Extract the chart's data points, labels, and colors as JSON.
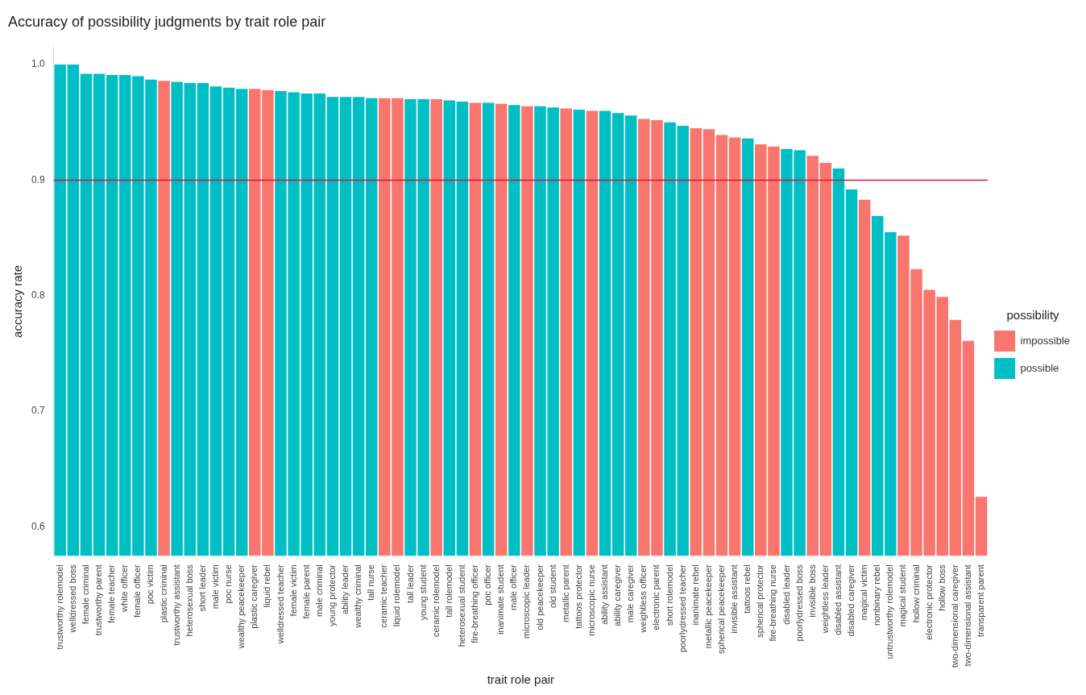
{
  "chart_data": {
    "type": "bar",
    "title": "Accuracy of possibility judgments by trait role pair",
    "xlabel": "trait role pair",
    "ylabel": "accuracy rate",
    "legend_title": "possibility",
    "legend": "right",
    "grid": false,
    "categories": [
      "trustworthy rolemodel",
      "welldressed boss",
      "female criminal",
      "trustworthy parent",
      "female teacher",
      "white officer",
      "female officer",
      "poc victim",
      "plastic criminal",
      "trustworthy assistant",
      "heterosexual boss",
      "short leader",
      "male victim",
      "poc nurse",
      "wealthy peacekeeper",
      "plastic caregiver",
      "liquid rebel",
      "welldressed teacher",
      "female victim",
      "female parent",
      "male criminal",
      "young protector",
      "ability leader",
      "wealthy criminal",
      "tall nurse",
      "ceramic teacher",
      "liquid rolemodel",
      "tall leader",
      "young student",
      "ceramic rolemodel",
      "tall rolemodel",
      "heterosexual student",
      "fire-breathing officer",
      "poc officer",
      "inanimate student",
      "male officer",
      "microscopic leader",
      "old peacekeeper",
      "old student",
      "metallic parent",
      "tattoos protector",
      "microscopic nurse",
      "ability assistant",
      "ability caregiver",
      "male caregiver",
      "weightless officer",
      "electronic parent",
      "short rolemodel",
      "poorlydressed teacher",
      "inanimate rebel",
      "metallic peacekeeper",
      "spherical peacekeeper",
      "invisible assistant",
      "tattoos rebel",
      "spherical protector",
      "fire-breathing nurse",
      "disabled leader",
      "poorlydressed boss",
      "invisible boss",
      "weightless leader",
      "disabled assistant",
      "disabled caregiver",
      "magical victim",
      "nonbinary rebel",
      "untrustworthy rolemodel",
      "magical student",
      "hollow criminal",
      "electronic protector",
      "hollow boss",
      "two-dimensional caregiver",
      "two-dimensional assistant",
      "transparent parent"
    ],
    "series": [
      {
        "name": "impossible",
        "color": "#f8766d",
        "values": [
          null,
          null,
          null,
          null,
          null,
          null,
          null,
          null,
          0.986,
          null,
          null,
          null,
          null,
          null,
          null,
          0.979,
          0.978,
          null,
          null,
          null,
          null,
          null,
          null,
          null,
          null,
          0.971,
          0.971,
          null,
          null,
          0.97,
          null,
          null,
          0.967,
          null,
          0.966,
          null,
          0.964,
          null,
          null,
          0.962,
          null,
          0.96,
          null,
          null,
          null,
          0.953,
          0.952,
          null,
          null,
          0.945,
          0.944,
          0.939,
          0.937,
          null,
          0.931,
          0.929,
          null,
          null,
          0.921,
          0.915,
          null,
          null,
          0.883,
          null,
          null,
          0.852,
          0.823,
          0.805,
          0.799,
          0.779,
          0.761,
          0.626
        ]
      },
      {
        "name": "possible",
        "color": "#00bfc4",
        "values": [
          1.0,
          1.0,
          0.992,
          0.992,
          0.991,
          0.991,
          0.99,
          0.987,
          null,
          0.985,
          0.984,
          0.984,
          0.981,
          0.98,
          0.979,
          null,
          null,
          0.977,
          0.976,
          0.975,
          0.975,
          0.972,
          0.972,
          0.972,
          0.971,
          null,
          null,
          0.97,
          0.97,
          null,
          0.969,
          0.968,
          null,
          0.967,
          null,
          0.965,
          null,
          0.964,
          0.963,
          null,
          0.961,
          null,
          0.96,
          0.958,
          0.956,
          null,
          null,
          0.95,
          0.947,
          null,
          null,
          null,
          null,
          0.936,
          null,
          null,
          0.927,
          0.926,
          null,
          null,
          0.91,
          0.892,
          null,
          0.869,
          0.855,
          null,
          null,
          null,
          null,
          null,
          null,
          null
        ]
      }
    ],
    "ylim": [
      0.575,
      1.015
    ],
    "yticks": [
      {
        "value": 0.6,
        "label": "0.6"
      },
      {
        "value": 0.7,
        "label": "0.7"
      },
      {
        "value": 0.8,
        "label": "0.8"
      },
      {
        "value": 0.9,
        "label": "0.9"
      },
      {
        "value": 1,
        "label": "1.0"
      }
    ],
    "ref_lines": [
      {
        "axis": "y",
        "value": 0.9,
        "color": "#dc143c"
      }
    ]
  }
}
